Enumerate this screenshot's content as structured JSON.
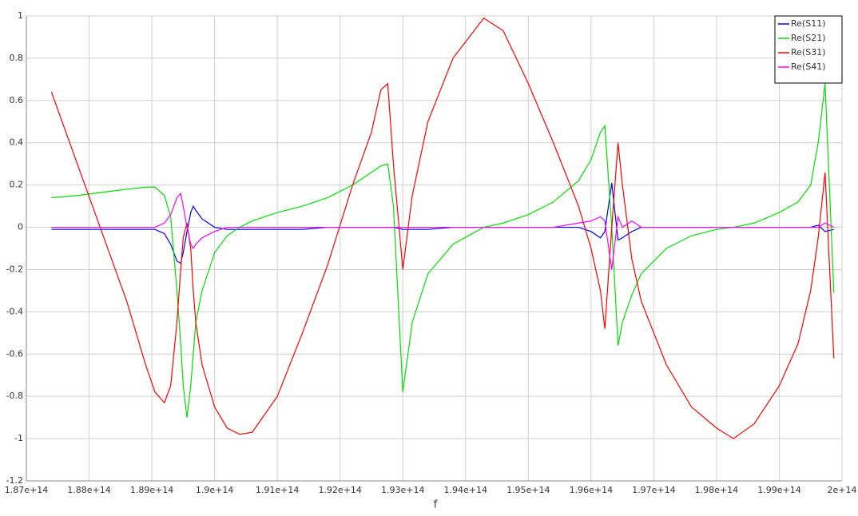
{
  "chart_data": {
    "type": "line",
    "xlabel": "f",
    "x": [
      187400000000000.0,
      187800000000000.0,
      188200000000000.0,
      188600000000000.0,
      188900000000000.0,
      189050000000000.0,
      189200000000000.0,
      189300000000000.0,
      189400000000000.0,
      189460000000000.0,
      189500000000000.0,
      189560000000000.0,
      189620000000000.0,
      189660000000000.0,
      189700000000000.0,
      189800000000000.0,
      190000000000000.0,
      190200000000000.0,
      190400000000000.0,
      190600000000000.0,
      191000000000000.0,
      191400000000000.0,
      191800000000000.0,
      192200000000000.0,
      192500000000000.0,
      192650000000000.0,
      192760000000000.0,
      192850000000000.0,
      193000000000000.0,
      193150000000000.0,
      193400000000000.0,
      193800000000000.0,
      194290000000000.0,
      194600000000000.0,
      195000000000000.0,
      195400000000000.0,
      195800000000000.0,
      196000000000000.0,
      196150000000000.0,
      196220000000000.0,
      196330000000000.0,
      196430000000000.0,
      196500000000000.0,
      196650000000000.0,
      196800000000000.0,
      197200000000000.0,
      197600000000000.0,
      198000000000000.0,
      198270000000000.0,
      198600000000000.0,
      199000000000000.0,
      199300000000000.0,
      199500000000000.0,
      199620000000000.0,
      199730000000000.0,
      199870000000000.0
    ],
    "series": [
      {
        "name": "Re(S11)",
        "color": "#0000ff",
        "values": [
          -0.01,
          -0.01,
          -0.01,
          -0.01,
          -0.01,
          -0.01,
          -0.03,
          -0.08,
          -0.16,
          -0.17,
          -0.12,
          -0.02,
          0.07,
          0.1,
          0.08,
          0.04,
          0.0,
          -0.01,
          -0.01,
          -0.01,
          -0.01,
          -0.01,
          0.0,
          0.0,
          0.0,
          0.0,
          0.0,
          0.0,
          -0.01,
          -0.01,
          -0.01,
          0.0,
          0.0,
          0.0,
          0.0,
          0.0,
          0.0,
          -0.02,
          -0.05,
          -0.02,
          0.21,
          -0.06,
          -0.05,
          -0.02,
          0.0,
          0.0,
          0.0,
          0.0,
          0.0,
          0.0,
          0.0,
          0.0,
          0.0,
          0.01,
          -0.02,
          -0.01
        ]
      },
      {
        "name": "Re(S21)",
        "color": "#00e000",
        "values": [
          0.14,
          0.15,
          0.165,
          0.18,
          0.19,
          0.19,
          0.15,
          0.05,
          -0.3,
          -0.55,
          -0.75,
          -0.9,
          -0.75,
          -0.6,
          -0.45,
          -0.3,
          -0.12,
          -0.04,
          0.0,
          0.03,
          0.07,
          0.1,
          0.14,
          0.2,
          0.26,
          0.29,
          0.3,
          0.1,
          -0.78,
          -0.45,
          -0.22,
          -0.08,
          0.0,
          0.02,
          0.06,
          0.12,
          0.22,
          0.32,
          0.45,
          0.48,
          0.0,
          -0.56,
          -0.45,
          -0.32,
          -0.22,
          -0.1,
          -0.04,
          -0.01,
          0.0,
          0.02,
          0.07,
          0.12,
          0.2,
          0.4,
          0.68,
          -0.31
        ]
      },
      {
        "name": "Re(S31)",
        "color": "#ff0000",
        "values": [
          0.64,
          0.31,
          -0.02,
          -0.35,
          -0.65,
          -0.78,
          -0.83,
          -0.75,
          -0.45,
          -0.2,
          -0.05,
          0.02,
          -0.1,
          -0.3,
          -0.45,
          -0.65,
          -0.85,
          -0.95,
          -0.98,
          -0.97,
          -0.8,
          -0.5,
          -0.18,
          0.2,
          0.45,
          0.65,
          0.68,
          0.3,
          -0.2,
          0.15,
          0.5,
          0.8,
          0.99,
          0.93,
          0.68,
          0.4,
          0.1,
          -0.1,
          -0.3,
          -0.48,
          0.0,
          0.4,
          0.2,
          -0.15,
          -0.35,
          -0.65,
          -0.85,
          -0.95,
          -1.0,
          -0.93,
          -0.75,
          -0.55,
          -0.3,
          -0.05,
          0.26,
          -0.62
        ]
      },
      {
        "name": "Re(S41)",
        "color": "#ff00ff",
        "values": [
          0.0,
          0.0,
          0.0,
          0.0,
          0.0,
          0.0,
          0.02,
          0.06,
          0.14,
          0.16,
          0.1,
          0.0,
          -0.08,
          -0.1,
          -0.08,
          -0.05,
          -0.02,
          0.0,
          0.0,
          0.0,
          0.0,
          0.0,
          0.0,
          0.0,
          0.0,
          0.0,
          0.0,
          0.0,
          0.0,
          0.0,
          0.0,
          0.0,
          0.0,
          0.0,
          0.0,
          0.0,
          0.02,
          0.03,
          0.05,
          0.03,
          -0.2,
          0.05,
          0.0,
          0.03,
          0.0,
          0.0,
          0.0,
          0.0,
          0.0,
          0.0,
          0.0,
          0.0,
          0.0,
          0.0,
          0.02,
          0.0
        ]
      }
    ],
    "xlim": [
      187000000000000.0,
      200000000000000.0
    ],
    "xticks": [
      {
        "value": 187000000000000.0,
        "label": "1.87e+14"
      },
      {
        "value": 188000000000000.0,
        "label": "1.88e+14"
      },
      {
        "value": 189000000000000.0,
        "label": "1.89e+14"
      },
      {
        "value": 190000000000000.0,
        "label": "1.9e+14"
      },
      {
        "value": 191000000000000.0,
        "label": "1.91e+14"
      },
      {
        "value": 192000000000000.0,
        "label": "1.92e+14"
      },
      {
        "value": 193000000000000.0,
        "label": "1.93e+14"
      },
      {
        "value": 194000000000000.0,
        "label": "1.94e+14"
      },
      {
        "value": 195000000000000.0,
        "label": "1.95e+14"
      },
      {
        "value": 196000000000000.0,
        "label": "1.96e+14"
      },
      {
        "value": 197000000000000.0,
        "label": "1.97e+14"
      },
      {
        "value": 198000000000000.0,
        "label": "1.98e+14"
      },
      {
        "value": 199000000000000.0,
        "label": "1.99e+14"
      },
      {
        "value": 200000000000000.0,
        "label": "2e+14"
      }
    ],
    "ylim": [
      -1.2,
      1
    ],
    "yticks": [
      -1.2,
      -1,
      -0.8,
      -0.6,
      -0.4,
      -0.2,
      0,
      0.2,
      0.4,
      0.6,
      0.8,
      1
    ],
    "grid": true,
    "legend": "upper right"
  }
}
